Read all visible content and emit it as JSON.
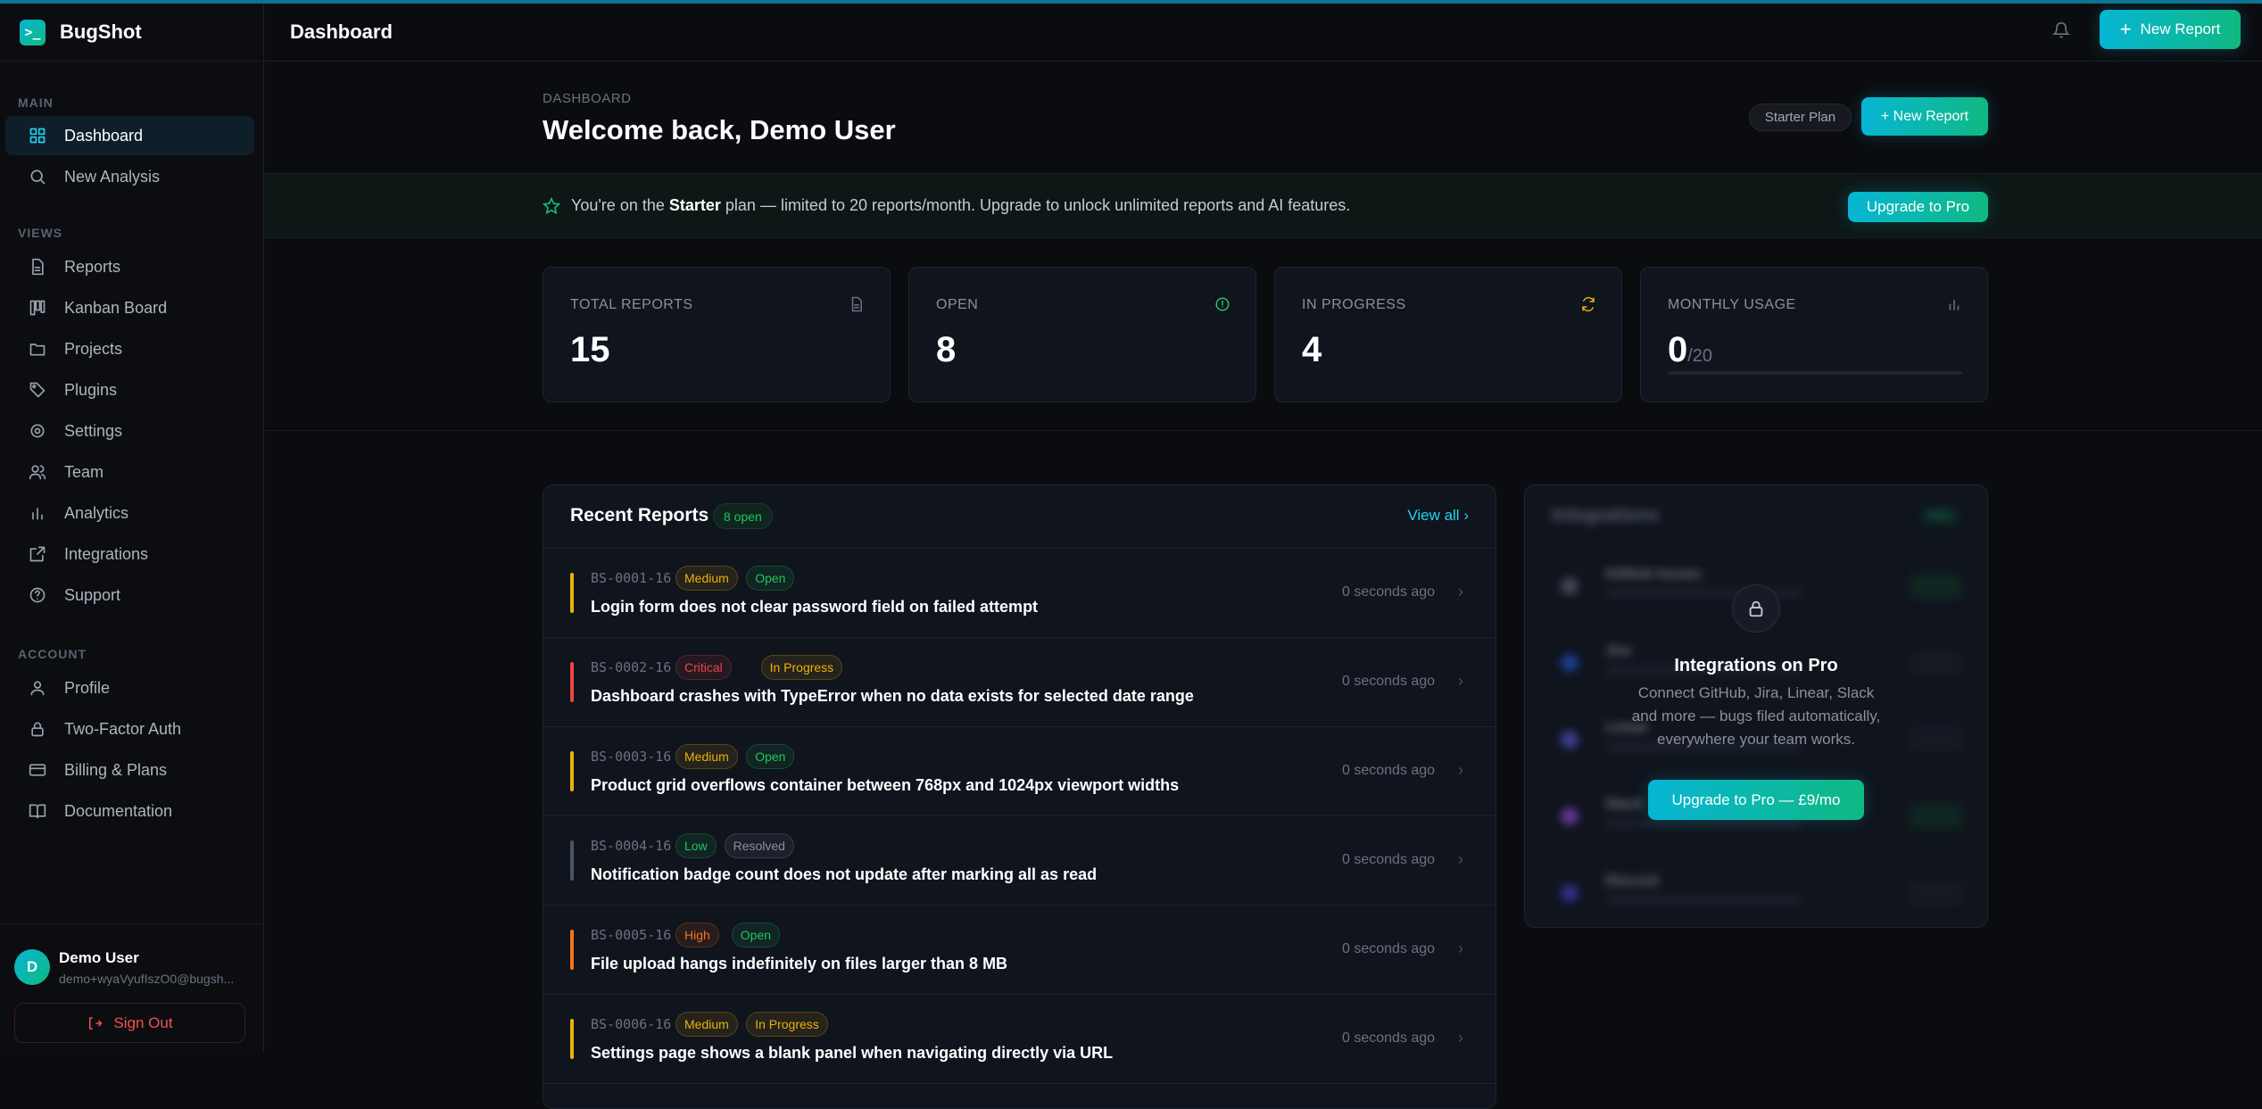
{
  "app": {
    "name": "BugShot",
    "logo_glyph": ">_"
  },
  "sidebar": {
    "sections": [
      {
        "label": "MAIN",
        "items": [
          {
            "label": "Dashboard",
            "icon": "grid-icon",
            "active": true
          },
          {
            "label": "New Analysis",
            "icon": "search-icon"
          }
        ]
      },
      {
        "label": "VIEWS",
        "items": [
          {
            "label": "Reports",
            "icon": "file-icon"
          },
          {
            "label": "Kanban Board",
            "icon": "kanban-icon"
          },
          {
            "label": "Projects",
            "icon": "folder-icon"
          },
          {
            "label": "Plugins",
            "icon": "tag-icon"
          },
          {
            "label": "Settings",
            "icon": "gear-icon"
          },
          {
            "label": "Team",
            "icon": "users-icon"
          },
          {
            "label": "Analytics",
            "icon": "bar-chart-icon"
          },
          {
            "label": "Integrations",
            "icon": "external-link-icon"
          },
          {
            "label": "Support",
            "icon": "help-circle-icon"
          }
        ]
      },
      {
        "label": "ACCOUNT",
        "items": [
          {
            "label": "Profile",
            "icon": "user-icon"
          },
          {
            "label": "Two-Factor Auth",
            "icon": "lock-icon"
          },
          {
            "label": "Billing & Plans",
            "icon": "credit-card-icon"
          },
          {
            "label": "Documentation",
            "icon": "book-icon"
          }
        ]
      }
    ],
    "user": {
      "initial": "D",
      "name": "Demo User",
      "email": "demo+wyaVyufIszO0@bugsh..."
    },
    "sign_out": "Sign Out"
  },
  "header": {
    "title": "Dashboard",
    "new_report": "New Report"
  },
  "page": {
    "breadcrumb": "DASHBOARD",
    "welcome": "Welcome back, Demo User",
    "plan_pill": "Starter Plan",
    "new_report": "+ New Report"
  },
  "banner": {
    "prefix": "You're on the ",
    "plan": "Starter",
    "suffix": " plan — limited to 20 reports/month. Upgrade to unlock unlimited reports and AI features.",
    "button": "Upgrade to Pro"
  },
  "stats": [
    {
      "label": "TOTAL REPORTS",
      "value": "15",
      "icon": "file-icon",
      "color": "#6b7180"
    },
    {
      "label": "OPEN",
      "value": "8",
      "icon": "alert-circle-icon",
      "color": "#22c55e"
    },
    {
      "label": "IN PROGRESS",
      "value": "4",
      "icon": "refresh-icon",
      "color": "#eab308"
    },
    {
      "label": "MONTHLY USAGE",
      "value": "0",
      "sub": "/20",
      "icon": "bar-chart-icon",
      "color": "#6b7180",
      "usage_fraction": 0
    }
  ],
  "recent": {
    "title": "Recent Reports",
    "badge": "8 open",
    "view_all": "View all",
    "rows": [
      {
        "id": "BS-0001-16",
        "severity": "Medium",
        "status": "Open",
        "title": "Login form does not clear password field on failed attempt",
        "time": "0 seconds ago"
      },
      {
        "id": "BS-0002-16",
        "severity": "Critical",
        "status": "In Progress",
        "title": "Dashboard crashes with TypeError when no data exists for selected date range",
        "time": "0 seconds ago"
      },
      {
        "id": "BS-0003-16",
        "severity": "Medium",
        "status": "Open",
        "title": "Product grid overflows container between 768px and 1024px viewport widths",
        "time": "0 seconds ago"
      },
      {
        "id": "BS-0004-16",
        "severity": "Low",
        "status": "Resolved",
        "title": "Notification badge count does not update after marking all as read",
        "time": "0 seconds ago"
      },
      {
        "id": "BS-0005-16",
        "severity": "High",
        "status": "Open",
        "title": "File upload hangs indefinitely on files larger than 8 MB",
        "time": "0 seconds ago"
      },
      {
        "id": "BS-0006-16",
        "severity": "Medium",
        "status": "In Progress",
        "title": "Settings page shows a blank panel when navigating directly via URL",
        "time": "0 seconds ago"
      }
    ]
  },
  "colors": {
    "accent_from": "#06b6d4",
    "accent_to": "#10b981",
    "severity": {
      "Medium": "#eab308",
      "Critical": "#ef4444",
      "Low": "#22c55e",
      "High": "#f97316"
    },
    "status": {
      "Open": "#22c55e",
      "In Progress": "#eab308",
      "Resolved": "#8a909c"
    }
  },
  "integrations": {
    "title": "Integrations",
    "badge": "PRO",
    "items": [
      {
        "name": "GitHub Issues",
        "color": "#6b7180",
        "connected": true
      },
      {
        "name": "Jira",
        "color": "#2563eb",
        "connected": false
      },
      {
        "name": "Linear",
        "color": "#6366f1",
        "connected": false
      },
      {
        "name": "Slack",
        "color": "#a855f7",
        "connected": true
      },
      {
        "name": "Discord",
        "color": "#4f46e5",
        "connected": false
      }
    ],
    "lock_title": "Integrations on Pro",
    "lock_desc": "Connect GitHub, Jira, Linear, Slack and more — bugs filed automatically, everywhere your team works.",
    "lock_button": "Upgrade to Pro — £9/mo"
  }
}
